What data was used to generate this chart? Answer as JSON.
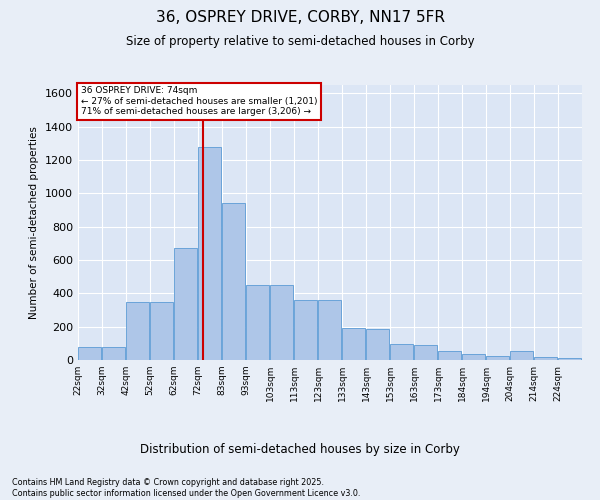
{
  "title_line1": "36, OSPREY DRIVE, CORBY, NN17 5FR",
  "title_line2": "Size of property relative to semi-detached houses in Corby",
  "xlabel": "Distribution of semi-detached houses by size in Corby",
  "ylabel": "Number of semi-detached properties",
  "footnote": "Contains HM Land Registry data © Crown copyright and database right 2025.\nContains public sector information licensed under the Open Government Licence v3.0.",
  "annotation_title": "36 OSPREY DRIVE: 74sqm",
  "annotation_line2": "← 27% of semi-detached houses are smaller (1,201)",
  "annotation_line3": "71% of semi-detached houses are larger (3,206) →",
  "property_size": 74,
  "bar_color": "#aec6e8",
  "bar_edge_color": "#5b9bd5",
  "redline_color": "#cc0000",
  "annotation_box_color": "#cc0000",
  "background_color": "#e8eef7",
  "plot_bg_color": "#dce6f5",
  "grid_color": "#ffffff",
  "bins": [
    22,
    32,
    42,
    52,
    62,
    72,
    82,
    92,
    102,
    112,
    122,
    132,
    142,
    152,
    162,
    172,
    182,
    192,
    202,
    212,
    222,
    232
  ],
  "bin_labels": [
    "22sqm",
    "32sqm",
    "42sqm",
    "52sqm",
    "62sqm",
    "72sqm",
    "83sqm",
    "93sqm",
    "103sqm",
    "113sqm",
    "123sqm",
    "133sqm",
    "143sqm",
    "153sqm",
    "163sqm",
    "173sqm",
    "184sqm",
    "194sqm",
    "204sqm",
    "214sqm",
    "224sqm"
  ],
  "counts": [
    80,
    80,
    350,
    350,
    670,
    1280,
    940,
    450,
    450,
    360,
    360,
    190,
    185,
    95,
    90,
    55,
    35,
    25,
    55,
    20,
    15
  ],
  "ylim": [
    0,
    1650
  ],
  "yticks": [
    0,
    200,
    400,
    600,
    800,
    1000,
    1200,
    1400,
    1600
  ]
}
